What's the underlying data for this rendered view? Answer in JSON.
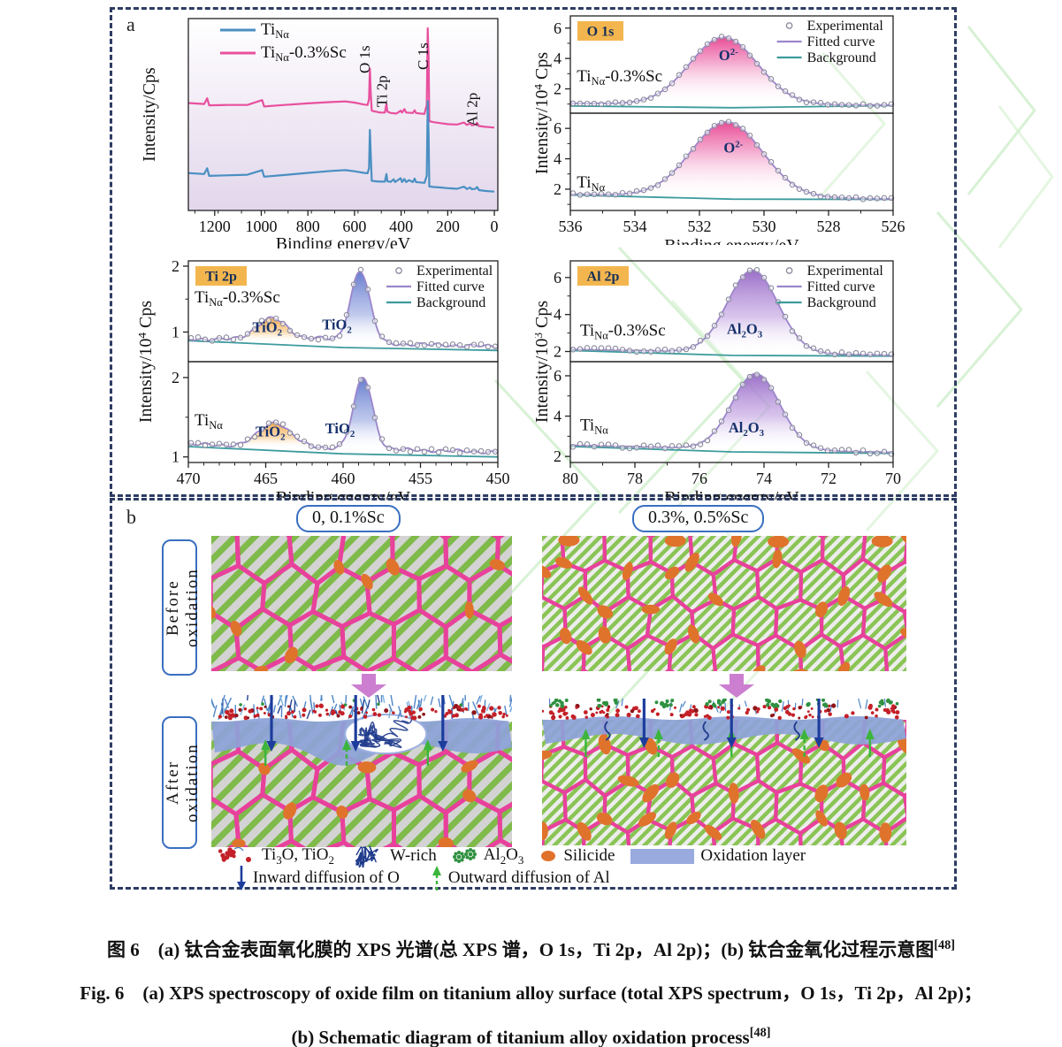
{
  "panel_a": {
    "label": "a"
  },
  "panel_b": {
    "label": "b",
    "columns": [
      "0, 0.1%Sc",
      "0.3%, 0.5%Sc"
    ],
    "rows": [
      "Before oxidation",
      "After oxidation"
    ],
    "legend": [
      {
        "name": "ti3o-tio2",
        "label": "Ti_{3}O, TiO_{2}"
      },
      {
        "name": "w-rich",
        "label": "W-rich"
      },
      {
        "name": "al2o3",
        "label": "Al_{2}O_{3}"
      },
      {
        "name": "silicide",
        "label": "Silicide"
      },
      {
        "name": "oxidation-layer",
        "label": "Oxidation layer"
      }
    ],
    "arrows": [
      {
        "name": "inward-diffusion",
        "label": "Inward diffusion of O"
      },
      {
        "name": "outward-diffusion",
        "label": "Outward diffusion of Al"
      }
    ],
    "colors": {
      "hex_stroke": "#e8419c",
      "stripe_green_coarse": "#7fba4a",
      "stripe_green_fine": "#8ac455",
      "stripe_bg_coarse": "#d3d3d3",
      "stripe_bg_fine": "#ededed",
      "silicide": "#e0732c",
      "oxide_layer": "#8da2d8",
      "oxide_swatch": "#98aade",
      "navy_arrow": "#1d3d9d",
      "green_arrow": "#3bb53b",
      "red_dot": "#c42028",
      "green_dot": "#2f9140",
      "w_rich": "#1e3a8c",
      "pink_arrow": "#cc7fd0",
      "box_border": "#3a6fc0"
    }
  },
  "caption": {
    "zh": "图 6　(a) 钛合金表面氧化膜的 XPS 光谱(总 XPS 谱，O 1s，Ti 2p，Al 2p)；(b) 钛合金氧化过程示意图",
    "zh_ref": "[48]",
    "en1": "Fig. 6　(a) XPS spectroscopy of oxide film on titanium alloy surface (total XPS spectrum，O 1s，Ti 2p，Al 2p)；",
    "en2": "(b) Schematic diagram of titanium alloy oxidation process",
    "en2_ref": "[48]"
  },
  "chart_data": [
    {
      "id": "survey",
      "type": "line",
      "xlabel": "Binding energy/eV",
      "ylabel": "Intensity/Cps",
      "x_range": [
        1313,
        -15
      ],
      "x_ticks": [
        1200,
        1000,
        800,
        600,
        400,
        200,
        0
      ],
      "x_minor": 100,
      "legend": [
        {
          "label": "Ti_{Nα}",
          "color": "#4a8fc2"
        },
        {
          "label": "Ti_{Nα}-0.3%Sc",
          "color": "#e8509e"
        }
      ],
      "peak_labels": [
        {
          "text": "O 1s",
          "x": 534.5,
          "y": 62
        },
        {
          "text": "Ti 2p",
          "x": 461.5,
          "y": 100
        },
        {
          "text": "C 1s",
          "x": 284,
          "y": 58
        },
        {
          "text": "Al 2p",
          "x": 75,
          "y": 122
        }
      ],
      "series": [
        {
          "name": "Ti_{Nα}-0.3%Sc",
          "color": "#e8509e",
          "points": [
            [
              1313,
              56
            ],
            [
              1245,
              55.5
            ],
            [
              1232,
              58.5
            ],
            [
              1224,
              54.8
            ],
            [
              1150,
              55
            ],
            [
              1060,
              55
            ],
            [
              996,
              57.5
            ],
            [
              988,
              54.2
            ],
            [
              900,
              55
            ],
            [
              800,
              55.8
            ],
            [
              700,
              56.5
            ],
            [
              640,
              56.8
            ],
            [
              600,
              56.2
            ],
            [
              560,
              55.2
            ],
            [
              544,
              55
            ],
            [
              538,
              58
            ],
            [
              534,
              74
            ],
            [
              530,
              60
            ],
            [
              526,
              52
            ],
            [
              510,
              51.5
            ],
            [
              490,
              51
            ],
            [
              470,
              51
            ],
            [
              463,
              55.5
            ],
            [
              459,
              51.5
            ],
            [
              445,
              50.8
            ],
            [
              420,
              50.5
            ],
            [
              402,
              52
            ],
            [
              396,
              51
            ],
            [
              386,
              52.8
            ],
            [
              378,
              51
            ],
            [
              350,
              50.8
            ],
            [
              342,
              52.2
            ],
            [
              336,
              50.8
            ],
            [
              320,
              50.5
            ],
            [
              300,
              50.3
            ],
            [
              290,
              55
            ],
            [
              286,
              95
            ],
            [
              282,
              80
            ],
            [
              279,
              46.5
            ],
            [
              260,
              46
            ],
            [
              230,
              45.5
            ],
            [
              200,
              45
            ],
            [
              160,
              44.8
            ],
            [
              130,
              45.8
            ],
            [
              118,
              44.6
            ],
            [
              104,
              45.4
            ],
            [
              96,
              44.4
            ],
            [
              80,
              44.8
            ],
            [
              74,
              45.6
            ],
            [
              66,
              44
            ],
            [
              40,
              43.6
            ],
            [
              20,
              43.4
            ],
            [
              0,
              43.2
            ]
          ]
        },
        {
          "name": "Ti_{Nα}",
          "color": "#4a8fc2",
          "points": [
            [
              1313,
              19.5
            ],
            [
              1245,
              19
            ],
            [
              1232,
              22
            ],
            [
              1224,
              18
            ],
            [
              1150,
              18.3
            ],
            [
              1060,
              18.6
            ],
            [
              996,
              21
            ],
            [
              988,
              17.6
            ],
            [
              900,
              18.5
            ],
            [
              800,
              19.6
            ],
            [
              700,
              20.6
            ],
            [
              640,
              21
            ],
            [
              600,
              20.4
            ],
            [
              560,
              19.6
            ],
            [
              544,
              19.4
            ],
            [
              538,
              22
            ],
            [
              534,
              42
            ],
            [
              530,
              28
            ],
            [
              526,
              15.5
            ],
            [
              510,
              15.2
            ],
            [
              490,
              15
            ],
            [
              470,
              15
            ],
            [
              463,
              19
            ],
            [
              459,
              15.2
            ],
            [
              445,
              14.9
            ],
            [
              432,
              16.2
            ],
            [
              426,
              14.8
            ],
            [
              402,
              16.8
            ],
            [
              396,
              14.8
            ],
            [
              386,
              16.4
            ],
            [
              378,
              14.8
            ],
            [
              366,
              15.8
            ],
            [
              350,
              14.8
            ],
            [
              342,
              16.6
            ],
            [
              336,
              14.8
            ],
            [
              320,
              14.6
            ],
            [
              300,
              14.4
            ],
            [
              290,
              18
            ],
            [
              286,
              57
            ],
            [
              282,
              40
            ],
            [
              279,
              12.5
            ],
            [
              260,
              12.2
            ],
            [
              230,
              12
            ],
            [
              200,
              11.6
            ],
            [
              160,
              11.3
            ],
            [
              130,
              12.4
            ],
            [
              118,
              11.2
            ],
            [
              104,
              12
            ],
            [
              96,
              11
            ],
            [
              80,
              11.4
            ],
            [
              74,
              12.2
            ],
            [
              66,
              10.6
            ],
            [
              40,
              10.2
            ],
            [
              20,
              10
            ],
            [
              0,
              9.8
            ]
          ]
        }
      ]
    },
    {
      "id": "o1s",
      "type": "area",
      "badge": "O 1s",
      "xlabel": "Binding energy/eV",
      "ylabel": "Intensity/10^{4} Cps",
      "x_range": [
        536,
        526
      ],
      "x_ticks": [
        536,
        534,
        532,
        530,
        528,
        526
      ],
      "x_minor": 1,
      "y_minor": 1,
      "marker_noise": 1.2,
      "curve_noise": 0,
      "legend": [
        "Experimental",
        "Fitted curve",
        "Background"
      ],
      "panels": [
        {
          "label": "Ti_{Nα}-0.3%Sc",
          "label_x": 535.8,
          "label_y": 2.5,
          "y_ticks": [
            2,
            4,
            6
          ],
          "y_range": [
            0.4,
            6.8
          ],
          "baseline": [
            1.05,
            0.93
          ],
          "bg_line": [
            0.88,
            0.9
          ],
          "peaks": [
            {
              "center": 531.25,
              "amp": 4.4,
              "sigma": 1.05,
              "fill": "pink",
              "label": "O^{2-}",
              "label_x": 531.1,
              "label_y": 3.9
            }
          ]
        },
        {
          "label": "Ti_{Nα}",
          "label_x": 535.8,
          "label_y": 2.1,
          "y_ticks": [
            2,
            4,
            6
          ],
          "y_range": [
            0.6,
            7.0
          ],
          "baseline": [
            1.68,
            1.36
          ],
          "bg_line": [
            1.62,
            1.33
          ],
          "peaks": [
            {
              "center": 531.15,
              "amp": 4.9,
              "sigma": 1.1,
              "fill": "pink",
              "label": "O^{2-}",
              "label_x": 530.95,
              "label_y": 4.4
            }
          ]
        }
      ]
    },
    {
      "id": "ti2p",
      "type": "area",
      "badge": "Ti 2p",
      "xlabel": "Binding energy/eV",
      "ylabel": "Intensity/10^{4} Cps",
      "x_range": [
        470,
        450
      ],
      "x_ticks": [
        470,
        465,
        460,
        455,
        450
      ],
      "x_minor": 1,
      "y_minor": 0.5,
      "marker_noise": 2.2,
      "curve_noise": 1.3,
      "legend": [
        "Experimental",
        "Fitted curve",
        "Background"
      ],
      "panels": [
        {
          "label": "Ti_{Nα}-0.3%Sc",
          "label_x": 469.6,
          "label_y": 1.45,
          "y_ticks": [
            1,
            2
          ],
          "y_range": [
            0.55,
            2.08
          ],
          "baseline": [
            0.9,
            0.78
          ],
          "bg_line": [
            0.87,
            0.72
          ],
          "peaks": [
            {
              "center": 464.6,
              "amp": 0.34,
              "sigma": 1.0,
              "fill": "orange",
              "label": "TiO_{2}",
              "label_x": 464.9,
              "label_y": 1.0
            },
            {
              "center": 461.6,
              "amp": 0.06,
              "sigma": 0.8,
              "fill": "none"
            },
            {
              "center": 458.9,
              "amp": 1.1,
              "sigma": 0.62,
              "fill": "blue",
              "label": "TiO_{2}",
              "label_x": 460.4,
              "label_y": 1.04
            }
          ]
        },
        {
          "label": "Ti_{Nα}",
          "label_x": 469.6,
          "label_y": 1.4,
          "y_ticks": [
            1,
            2
          ],
          "y_range": [
            0.93,
            2.2
          ],
          "baseline": [
            1.16,
            1.06
          ],
          "bg_line": [
            1.13,
            1.0
          ],
          "peaks": [
            {
              "center": 464.4,
              "amp": 0.3,
              "sigma": 1.0,
              "fill": "orange",
              "label": "TiO_{2}",
              "label_x": 464.7,
              "label_y": 1.26
            },
            {
              "center": 458.7,
              "amp": 0.9,
              "sigma": 0.6,
              "fill": "blue",
              "label": "TiO_{2}",
              "label_x": 460.2,
              "label_y": 1.3
            }
          ]
        }
      ]
    },
    {
      "id": "al2p",
      "type": "area",
      "badge": "Al 2p",
      "xlabel": "Binding energy/eV",
      "ylabel": "Intensity/10^{3} Cps",
      "x_range": [
        80,
        70
      ],
      "x_ticks": [
        80,
        78,
        76,
        74,
        72,
        70
      ],
      "x_minor": 1,
      "y_minor": 1,
      "marker_noise": 2.2,
      "curve_noise": 0,
      "legend": [
        "Experimental",
        "Fitted curve",
        "Background"
      ],
      "panels": [
        {
          "label": "Ti_{Nα}-0.3%Sc",
          "label_x": 79.7,
          "label_y": 2.85,
          "y_ticks": [
            2,
            4,
            6
          ],
          "y_range": [
            1.45,
            6.9
          ],
          "baseline": [
            2.12,
            1.8
          ],
          "bg_line": [
            2.05,
            1.75
          ],
          "peaks": [
            {
              "center": 74.35,
              "amp": 4.45,
              "sigma": 0.78,
              "fill": "purple",
              "label": "Al_{2}O_{3}",
              "label_x": 74.6,
              "label_y": 2.95
            }
          ]
        },
        {
          "label": "Ti_{Nα}",
          "label_x": 79.7,
          "label_y": 3.3,
          "y_ticks": [
            2,
            4,
            6
          ],
          "y_range": [
            1.7,
            6.7
          ],
          "baseline": [
            2.56,
            2.2
          ],
          "bg_line": [
            2.5,
            2.15
          ],
          "peaks": [
            {
              "center": 74.25,
              "amp": 3.75,
              "sigma": 0.74,
              "fill": "purple",
              "label": "Al_{2}O_{3}",
              "label_x": 74.55,
              "label_y": 3.2
            }
          ]
        }
      ]
    }
  ],
  "plot_style": {
    "marker_color": "#8b8b9e",
    "fitted_color": "#9c86cc",
    "background_color": "#3d9b9e",
    "badge_bg": "#f3b64f",
    "badge_text": "#173058",
    "peak_label_color": "#15306b"
  }
}
